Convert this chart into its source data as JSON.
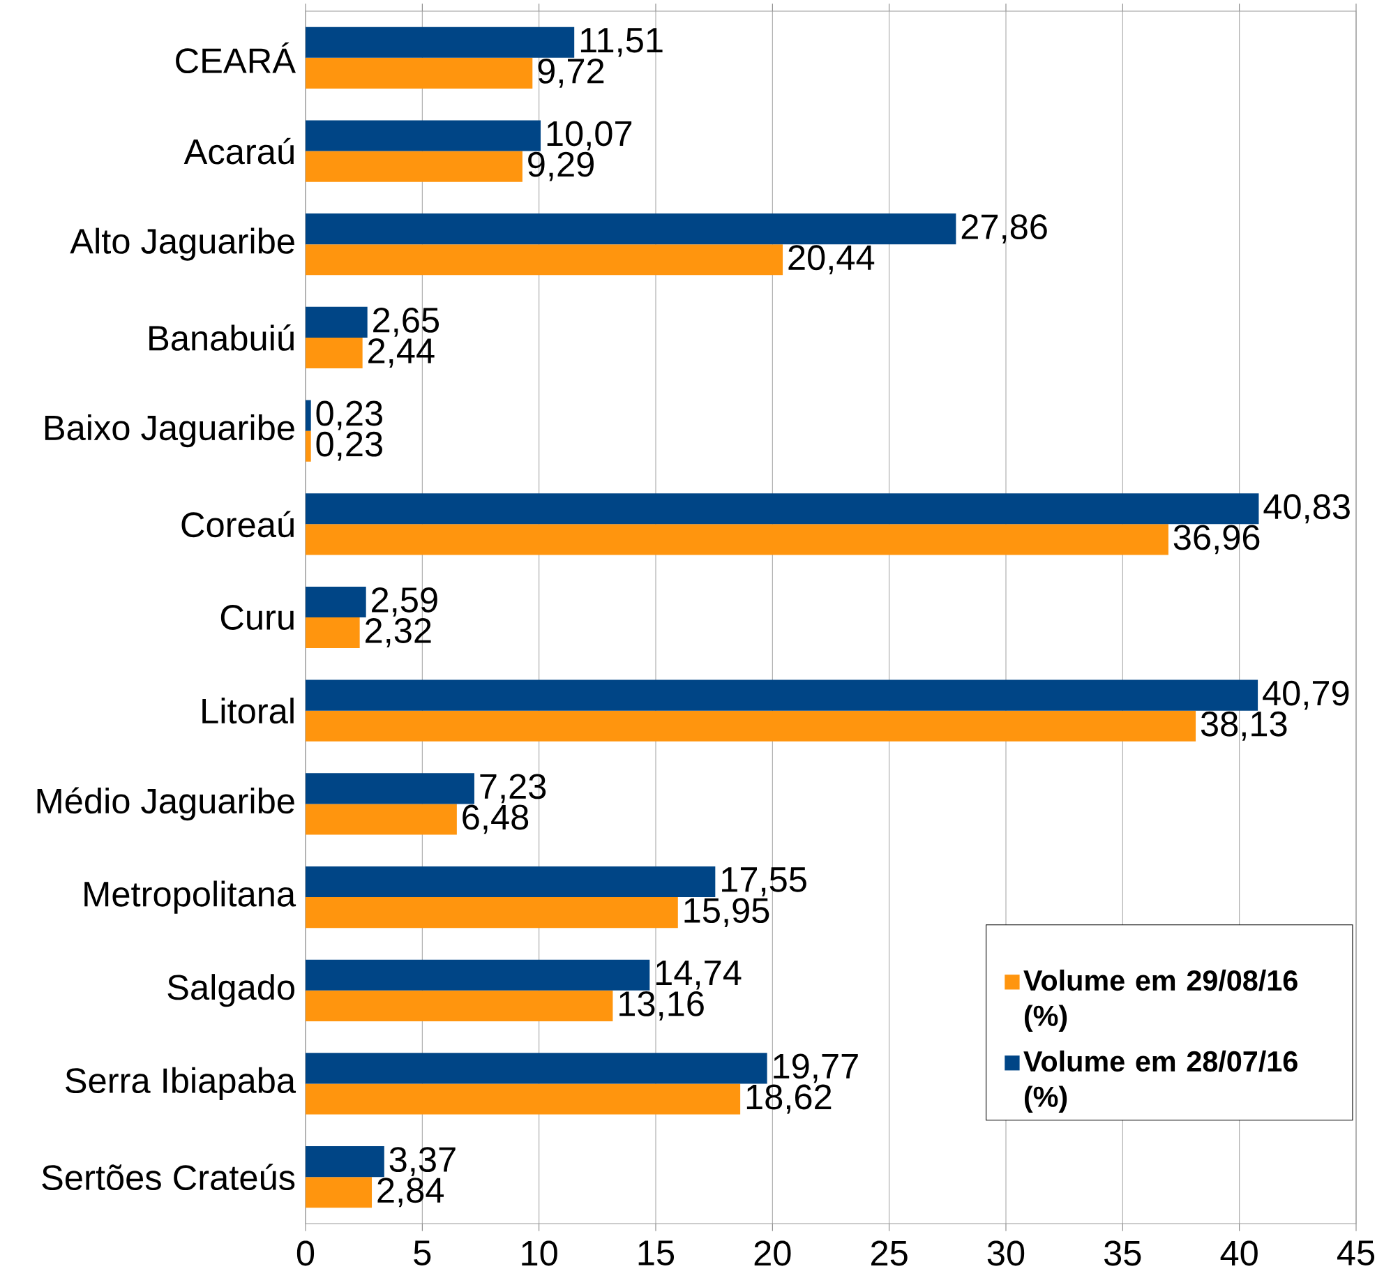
{
  "chart_data": {
    "type": "bar",
    "orientation": "horizontal",
    "categories": [
      "CEARÁ",
      "Acaraú",
      "Alto Jaguaribe",
      "Banabuiú",
      "Baixo Jaguaribe",
      "Coreaú",
      "Curu",
      "Litoral",
      "Médio Jaguaribe",
      "Metropolitana",
      "Salgado",
      "Serra Ibiapaba",
      "Sertões Crateús"
    ],
    "series": [
      {
        "name": "Volume em 29/08/16 (%)",
        "color": "#ff950e",
        "values": [
          9.72,
          9.29,
          20.44,
          2.44,
          0.23,
          36.96,
          2.32,
          38.13,
          6.48,
          15.95,
          13.16,
          18.62,
          2.84
        ],
        "value_labels": [
          "9,72",
          "9,29",
          "20,44",
          "2,44",
          "0,23",
          "36,96",
          "2,32",
          "38,13",
          "6,48",
          "15,95",
          "13,16",
          "18,62",
          "2,84"
        ]
      },
      {
        "name": "Volume em 28/07/16 (%)",
        "color": "#004586",
        "values": [
          11.51,
          10.07,
          27.86,
          2.65,
          0.23,
          40.83,
          2.59,
          40.79,
          7.23,
          17.55,
          14.74,
          19.77,
          3.37
        ],
        "value_labels": [
          "11,51",
          "10,07",
          "27,86",
          "2,65",
          "0,23",
          "40,83",
          "2,59",
          "40,79",
          "7,23",
          "17,55",
          "14,74",
          "19,77",
          "3,37"
        ]
      }
    ],
    "xlim": [
      0,
      45
    ],
    "xticks": [
      0,
      5,
      10,
      15,
      20,
      25,
      30,
      35,
      40,
      45
    ],
    "grid": "x",
    "legend": "bottom right"
  }
}
